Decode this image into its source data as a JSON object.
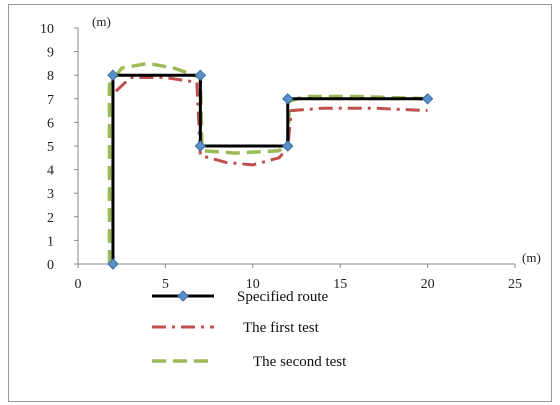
{
  "chart_data": {
    "type": "line",
    "xlabel": "(m)",
    "ylabel": "(m)",
    "xlim": [
      0,
      25
    ],
    "ylim": [
      0,
      10
    ],
    "x_ticks": [
      0,
      5,
      10,
      15,
      20,
      25
    ],
    "y_ticks": [
      0,
      1,
      2,
      3,
      4,
      5,
      6,
      7,
      8,
      9,
      10
    ],
    "grid": false,
    "legend_position": "bottom",
    "series": [
      {
        "name": "Specified route",
        "color": "#000000",
        "style": "solid-with-diamond-markers",
        "points": [
          [
            2,
            0
          ],
          [
            2,
            8
          ],
          [
            7,
            8
          ],
          [
            7,
            5
          ],
          [
            12,
            5
          ],
          [
            12,
            7
          ],
          [
            20,
            7
          ]
        ],
        "marker_color": "#5b8fc7"
      },
      {
        "name": "The first test",
        "color": "#c0504d",
        "style": "dash-dot",
        "points": [
          [
            2,
            0
          ],
          [
            2,
            7.2
          ],
          [
            3,
            7.9
          ],
          [
            5,
            7.9
          ],
          [
            6.8,
            7.7
          ],
          [
            7,
            4.6
          ],
          [
            8.5,
            4.3
          ],
          [
            10,
            4.2
          ],
          [
            11.5,
            4.5
          ],
          [
            12,
            4.9
          ],
          [
            12.2,
            6.5
          ],
          [
            14,
            6.6
          ],
          [
            17,
            6.6
          ],
          [
            20,
            6.5
          ]
        ]
      },
      {
        "name": "The second test",
        "color": "#9bbb59",
        "style": "dashed",
        "points": [
          [
            1.8,
            0
          ],
          [
            1.8,
            7.6
          ],
          [
            2.5,
            8.3
          ],
          [
            4,
            8.5
          ],
          [
            5.5,
            8.3
          ],
          [
            7,
            7.9
          ],
          [
            7.1,
            4.8
          ],
          [
            9,
            4.7
          ],
          [
            11.5,
            4.8
          ],
          [
            12,
            5.1
          ],
          [
            12.1,
            6.9
          ],
          [
            13,
            7.1
          ],
          [
            16,
            7.1
          ],
          [
            20,
            7.0
          ]
        ]
      }
    ]
  }
}
